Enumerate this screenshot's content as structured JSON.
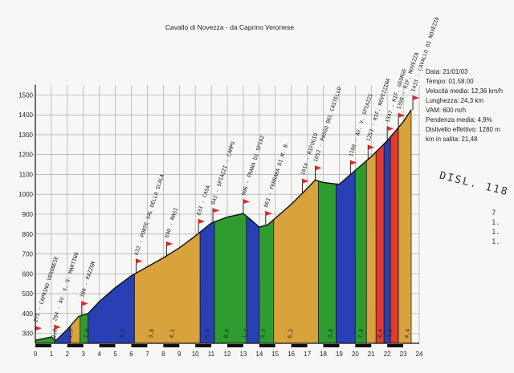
{
  "chart_data": {
    "type": "area",
    "title": "Cavallo di Novezza - da Caprino Veronese",
    "xlabel": "",
    "ylabel": "",
    "xlim": [
      0,
      24
    ],
    "ylim": [
      250,
      1550
    ],
    "x_ticks": [
      "0",
      "1",
      "2",
      "3",
      "4",
      "5",
      "6",
      "7",
      "8",
      "9",
      "10",
      "11",
      "12",
      "13",
      "14",
      "15",
      "16",
      "17",
      "18",
      "19",
      "20",
      "21",
      "22",
      "23",
      "24"
    ],
    "y_ticks": [
      "300",
      "400",
      "500",
      "600",
      "700",
      "800",
      "900",
      "1000",
      "1100",
      "1200",
      "1300",
      "1400",
      "1500"
    ],
    "grid": true,
    "profile": [
      {
        "x": 0,
        "y": 265
      },
      {
        "x": 1,
        "y": 282
      },
      {
        "x": 1.3,
        "y": 265
      },
      {
        "x": 2,
        "y": 320
      },
      {
        "x": 2.7,
        "y": 385
      },
      {
        "x": 3.3,
        "y": 400
      },
      {
        "x": 4,
        "y": 460
      },
      {
        "x": 5,
        "y": 530
      },
      {
        "x": 6,
        "y": 590
      },
      {
        "x": 7,
        "y": 635
      },
      {
        "x": 8,
        "y": 680
      },
      {
        "x": 9,
        "y": 730
      },
      {
        "x": 10,
        "y": 790
      },
      {
        "x": 11,
        "y": 855
      },
      {
        "x": 12,
        "y": 885
      },
      {
        "x": 13,
        "y": 903
      },
      {
        "x": 13.5,
        "y": 870
      },
      {
        "x": 14,
        "y": 835
      },
      {
        "x": 14.5,
        "y": 845
      },
      {
        "x": 15,
        "y": 880
      },
      {
        "x": 16,
        "y": 950
      },
      {
        "x": 17,
        "y": 1030
      },
      {
        "x": 17.5,
        "y": 1072
      },
      {
        "x": 18,
        "y": 1060
      },
      {
        "x": 19,
        "y": 1050
      },
      {
        "x": 20,
        "y": 1120
      },
      {
        "x": 21,
        "y": 1190
      },
      {
        "x": 22,
        "y": 1270
      },
      {
        "x": 23,
        "y": 1365
      },
      {
        "x": 23.5,
        "y": 1425
      }
    ],
    "segments": [
      {
        "x0": 0,
        "x1": 1.2,
        "color": "#2e9c2e"
      },
      {
        "x0": 1.2,
        "x1": 2.2,
        "color": "#2840b4"
      },
      {
        "x0": 2.2,
        "x1": 2.8,
        "color": "#d8a23c"
      },
      {
        "x0": 2.8,
        "x1": 3.3,
        "color": "#2e9c2e"
      },
      {
        "x0": 3.3,
        "x1": 6.2,
        "color": "#2840b4"
      },
      {
        "x0": 6.2,
        "x1": 10.3,
        "color": "#d8a23c"
      },
      {
        "x0": 10.3,
        "x1": 11.2,
        "color": "#2840b4"
      },
      {
        "x0": 11.2,
        "x1": 13.2,
        "color": "#2e9c2e"
      },
      {
        "x0": 13.2,
        "x1": 14,
        "color": "#2840b4"
      },
      {
        "x0": 14,
        "x1": 14.9,
        "color": "#2e9c2e"
      },
      {
        "x0": 14.9,
        "x1": 17.7,
        "color": "#d8a23c"
      },
      {
        "x0": 17.7,
        "x1": 18.8,
        "color": "#2e9c2e"
      },
      {
        "x0": 18.8,
        "x1": 20,
        "color": "#2840b4"
      },
      {
        "x0": 20,
        "x1": 20.7,
        "color": "#2e9c2e"
      },
      {
        "x0": 20.7,
        "x1": 21.3,
        "color": "#d8a23c"
      },
      {
        "x0": 21.3,
        "x1": 21.8,
        "color": "#e23a2e"
      },
      {
        "x0": 21.8,
        "x1": 22.2,
        "color": "#2840b4"
      },
      {
        "x0": 22.2,
        "x1": 22.7,
        "color": "#e23a2e"
      },
      {
        "x0": 22.7,
        "x1": 23.5,
        "color": "#d8a23c"
      }
    ],
    "segment_labels": [
      {
        "x": 1.25,
        "label": "2,0"
      },
      {
        "x": 2.25,
        "label": "1,5"
      },
      {
        "x": 3.25,
        "label": "7,0"
      },
      {
        "x": 5.5,
        "label": "4,5"
      },
      {
        "x": 7.3,
        "label": "3,8"
      },
      {
        "x": 8.6,
        "label": "4,1"
      },
      {
        "x": 10.8,
        "label": "6,4"
      },
      {
        "x": 12,
        "label": "8,0"
      },
      {
        "x": 13.2,
        "label": "1,7"
      },
      {
        "x": 14.3,
        "label": "3,3"
      },
      {
        "x": 16,
        "label": "6,2"
      },
      {
        "x": 18.5,
        "label": "3,8"
      },
      {
        "x": 20.4,
        "label": "7,0"
      },
      {
        "x": 21.6,
        "label": "4,4"
      },
      {
        "x": 22.2,
        "label": "3,6"
      },
      {
        "x": 23.3,
        "label": "4,4"
      }
    ],
    "waypoints": [
      {
        "x": 0,
        "label": "275 - CAPRINO VERONESE"
      },
      {
        "x": 1.2,
        "label": "294 - AV. V. S. MARTINO"
      },
      {
        "x": 2.9,
        "label": "380 - PAZZON"
      },
      {
        "x": 6.3,
        "label": "632 - PONTE VAL DELLA SCALA"
      },
      {
        "x": 8.2,
        "label": "690 - MASI"
      },
      {
        "x": 10.2,
        "label": "833 - CASA"
      },
      {
        "x": 11.1,
        "label": "842 - SPIAZZI - CAMPO"
      },
      {
        "x": 13.0,
        "label": "906 - FRANA DI SPIAZ"
      },
      {
        "x": 14.4,
        "label": "863 - FERRARA DI M. B."
      },
      {
        "x": 16.7,
        "label": "1014 - RIFUGIO"
      },
      {
        "x": 17.5,
        "label": "1052 - PASSO DEL CASTELLO"
      },
      {
        "x": 19.7,
        "label": "1100 - AV. V. SPIAZZI"
      },
      {
        "x": 20.8,
        "label": "1253 - RIF. NOVEZZINA"
      },
      {
        "x": 22.0,
        "label": "1347 - RIF. GEORGE"
      },
      {
        "x": 22.7,
        "label": "1398 - RIF. NOVEZZA"
      },
      {
        "x": 23.6,
        "label": "1433 - CAVALLO DI NOVEZZA"
      }
    ],
    "stats": [
      "Data: 21/01/03",
      "Tempo: 01.58.00",
      "Velocità media: 12,36 km/h",
      "Lunghezza: 24,3 km",
      "VAM: 600 m/h",
      "Pendenza media: 4,9%",
      "Dislivello effettivo: 1280 m",
      "km in salita: 21,48"
    ],
    "side_note": "DISL. 118",
    "side_marks": [
      "7",
      "1.",
      "1.",
      "1."
    ]
  }
}
